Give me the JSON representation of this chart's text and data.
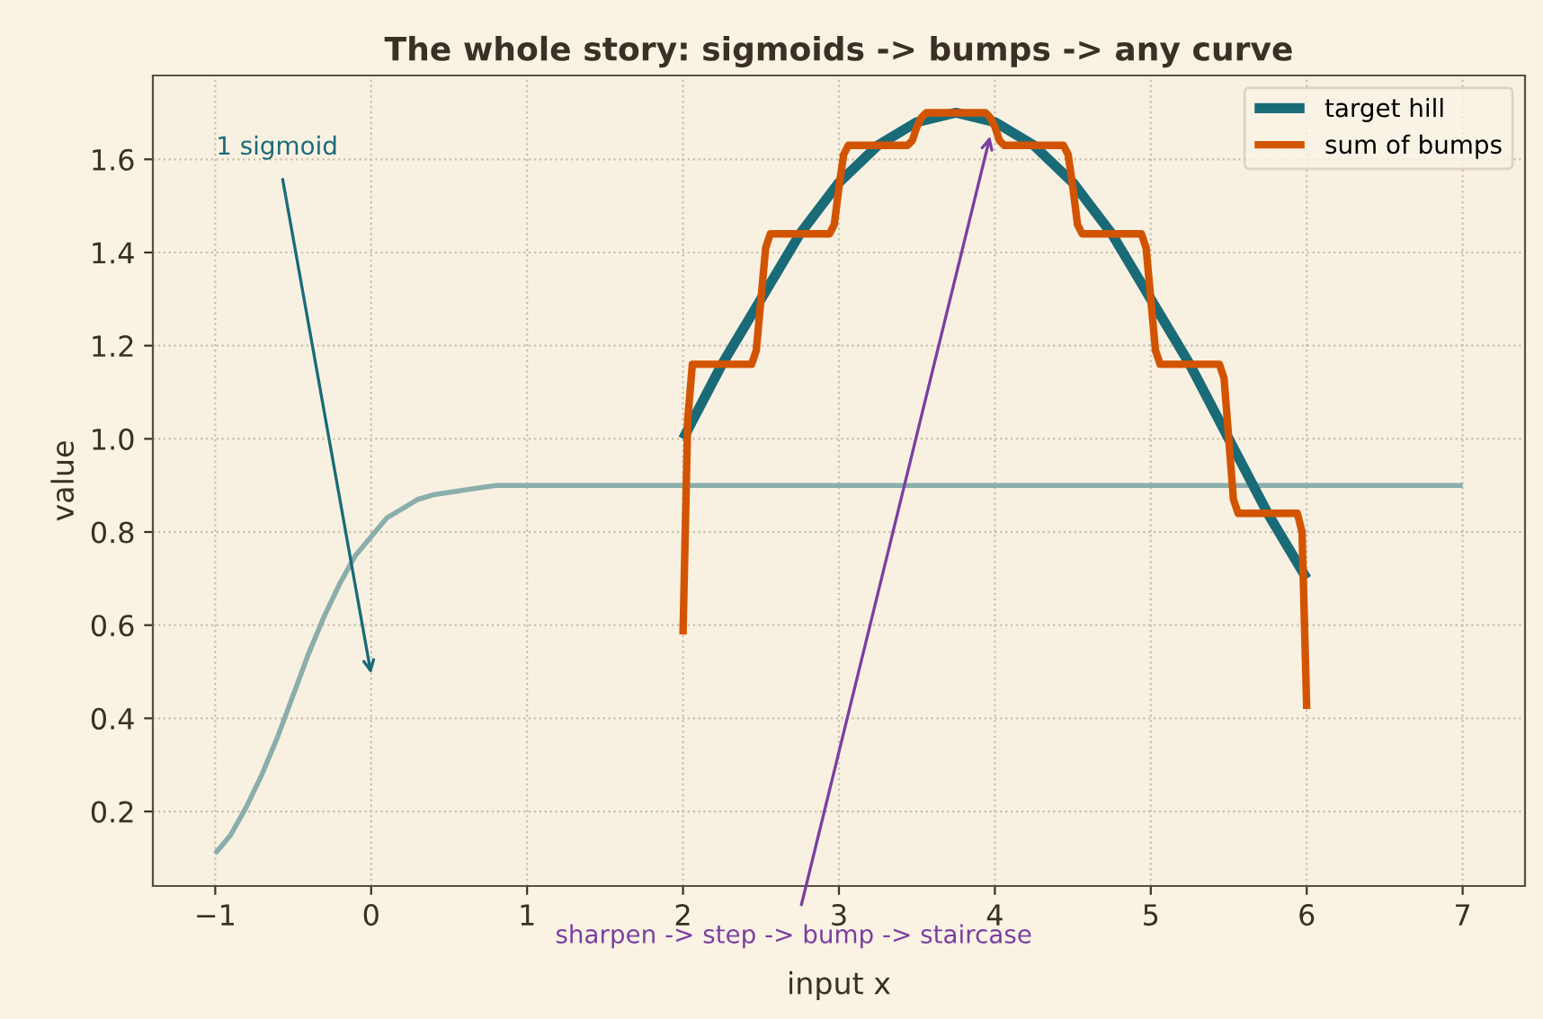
{
  "chart_data": {
    "type": "line",
    "title": "The whole story: sigmoids -> bumps -> any curve",
    "xlabel": "input x",
    "ylabel": "value",
    "xlim": [
      -1.4,
      7.4
    ],
    "xticks": [
      {
        "value": -1,
        "label": "−1"
      },
      0,
      1,
      2,
      3,
      4,
      5,
      6,
      7
    ],
    "ylim": [
      0.04,
      1.78
    ],
    "yticks": [
      0.2,
      0.4,
      0.6,
      0.8,
      {
        "value": 1,
        "label": "1.0"
      },
      1.2,
      1.4,
      1.6
    ],
    "grid": true,
    "legend": "top right",
    "series": [
      {
        "color": "#8aaeab",
        "x": [
          -1,
          -0.9,
          -0.8,
          -0.7,
          -0.6,
          -0.5,
          -0.4,
          -0.3,
          -0.2,
          -0.1,
          0,
          0.1,
          0.2,
          0.3,
          0.4,
          0.6,
          0.8,
          1,
          1.5,
          2,
          7
        ],
        "values": [
          0.11,
          0.15,
          0.21,
          0.28,
          0.36,
          0.45,
          0.54,
          0.62,
          0.69,
          0.75,
          0.79,
          0.83,
          0.85,
          0.87,
          0.88,
          0.89,
          0.9,
          0.9,
          0.9,
          0.9,
          0.9
        ]
      },
      {
        "name": "target hill",
        "color": "#1a6b78",
        "x": [
          2,
          2.25,
          2.5,
          2.75,
          3,
          3.25,
          3.5,
          3.75,
          4,
          4.25,
          4.5,
          4.75,
          5,
          5.25,
          5.5,
          5.75,
          6
        ],
        "values": [
          1.0,
          1.16,
          1.3,
          1.44,
          1.55,
          1.63,
          1.68,
          1.7,
          1.68,
          1.63,
          1.55,
          1.44,
          1.3,
          1.16,
          1.0,
          0.84,
          0.7
        ]
      },
      {
        "name": "sum of bumps",
        "color": "#d35400",
        "x": [
          2.0,
          2.03,
          2.06,
          2.44,
          2.47,
          2.5,
          2.53,
          2.56,
          2.94,
          2.97,
          3.0,
          3.03,
          3.06,
          3.44,
          3.47,
          3.5,
          3.53,
          3.56,
          3.94,
          3.97,
          4.0,
          4.03,
          4.06,
          4.44,
          4.47,
          4.5,
          4.53,
          4.56,
          4.94,
          4.97,
          5.0,
          5.03,
          5.06,
          5.44,
          5.47,
          5.5,
          5.53,
          5.56,
          5.94,
          5.97,
          6.0
        ],
        "values": [
          0.58,
          1.04,
          1.16,
          1.16,
          1.19,
          1.3,
          1.41,
          1.44,
          1.44,
          1.46,
          1.54,
          1.61,
          1.63,
          1.63,
          1.64,
          1.67,
          1.69,
          1.7,
          1.7,
          1.69,
          1.67,
          1.64,
          1.63,
          1.63,
          1.61,
          1.54,
          1.46,
          1.44,
          1.44,
          1.41,
          1.3,
          1.19,
          1.16,
          1.16,
          1.13,
          1.0,
          0.87,
          0.84,
          0.84,
          0.8,
          0.42
        ]
      }
    ],
    "annotations": [
      "1 sigmoid",
      {
        "text": "sharpen -> step -> bump -> staircase",
        "x": 3.97,
        "y": 1.65
      }
    ]
  }
}
